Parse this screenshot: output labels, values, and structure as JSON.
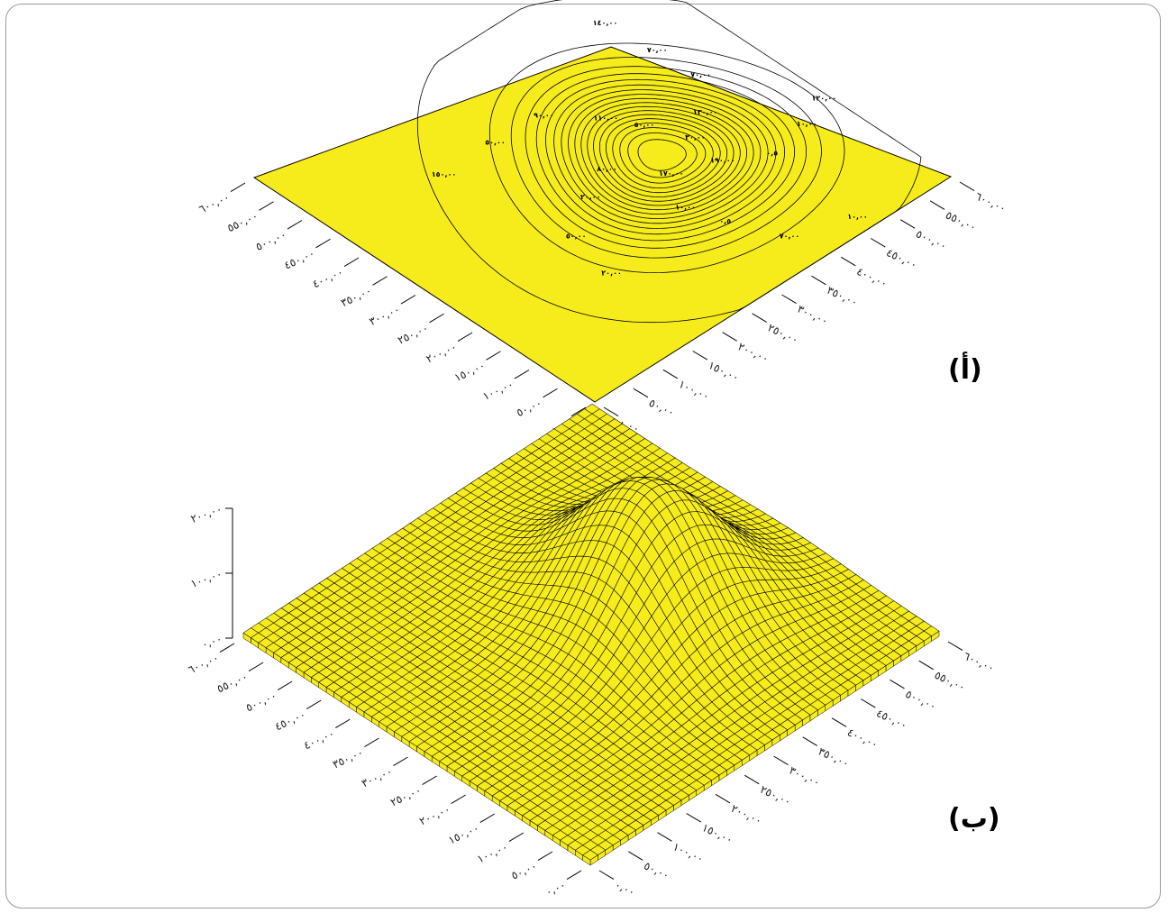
{
  "chart_data": [
    {
      "type": "contour",
      "panel_label": "(أ)",
      "x_ticks": [
        "٠,٠٠",
        "٥٠,٠٠",
        "١٠٠,٠٠",
        "١٥٠,٠٠",
        "٢٠٠,٠٠",
        "٢٥٠,٠٠",
        "٣٠٠,٠٠",
        "٣٥٠,٠٠",
        "٤٠٠,٠٠",
        "٤٥٠,٠٠",
        "٥٠٠,٠٠",
        "٥٥٠,٠٠",
        "٦٠٠,٠٠"
      ],
      "y_ticks": [
        "٠,٠٠",
        "٥٠,٠٠",
        "١٠٠,٠٠",
        "١٥٠,٠٠",
        "٢٠٠,٠٠",
        "٢٥٠,٠٠",
        "٣٠٠,٠٠",
        "٣٥٠,٠٠",
        "٤٠٠,٠٠",
        "٤٥٠,٠٠",
        "٥٠٠,٠٠",
        "٥٥٠,٠٠",
        "٦٠٠,٠٠"
      ],
      "xlim": [
        0,
        600
      ],
      "ylim": [
        0,
        600
      ],
      "peak": {
        "x": 380,
        "y": 280,
        "z": 190
      },
      "contour_levels": [
        0.5,
        10,
        20,
        30,
        40,
        50,
        60,
        70,
        80,
        90,
        100,
        110,
        120,
        130,
        140,
        150,
        160,
        170,
        180,
        190
      ],
      "contour_labels": [
        "٣٠,٠٠",
        "٥٠,٠٠",
        "٨٠,٠٠",
        "١٠,٠٠",
        "٠,٥",
        "٧٠,٠٠",
        "٩٠,٠٠",
        "٥٠,٠٠",
        "٧٠,٠٠",
        "١٢٠,٠٠",
        "١٤٠,٠٠",
        "١٥٠,٠٠",
        "١٧٠,٠٠",
        "١٩٠,٠٠",
        "١٣٠,٠٠",
        "١١٠,٠٠",
        "٢٠,٠٠",
        "٠,٥",
        "١٠,٠٠",
        "٧٠,٠٠",
        "٥٠,٠٠",
        "٢٠,٠٠",
        "١٠,٠٠"
      ],
      "fill_color": "#f6ec1c"
    },
    {
      "type": "surface",
      "panel_label": "(ب)",
      "x_ticks": [
        "٠,٠٠",
        "٥٠,٠٠",
        "١٠٠,٠٠",
        "١٥٠,٠٠",
        "٢٠٠,٠٠",
        "٢٥٠,٠٠",
        "٣٠٠,٠٠",
        "٣٥٠,٠٠",
        "٤٠٠,٠٠",
        "٤٥٠,٠٠",
        "٥٠٠,٠٠",
        "٥٥٠,٠٠",
        "٦٠٠,٠٠"
      ],
      "y_ticks": [
        "٠,٠٠",
        "٥٠,٠٠",
        "١٠٠,٠٠",
        "١٥٠,٠٠",
        "٢٠٠,٠٠",
        "٢٥٠,٠٠",
        "٣٠٠,٠٠",
        "٣٥٠,٠٠",
        "٤٠٠,٠٠",
        "٤٥٠,٠٠",
        "٥٠٠,٠٠",
        "٥٥٠,٠٠",
        "٦٠٠,٠٠"
      ],
      "z_ticks": [
        "٠,٠٠",
        "١٠٠,٠٠",
        "٢٠٠,٠٠"
      ],
      "xlim": [
        0,
        600
      ],
      "ylim": [
        0,
        600
      ],
      "zlim": [
        0,
        200
      ],
      "peak": {
        "x": 380,
        "y": 280,
        "z": 190
      },
      "grid": true,
      "fill_color": "#f6ec1c"
    }
  ]
}
